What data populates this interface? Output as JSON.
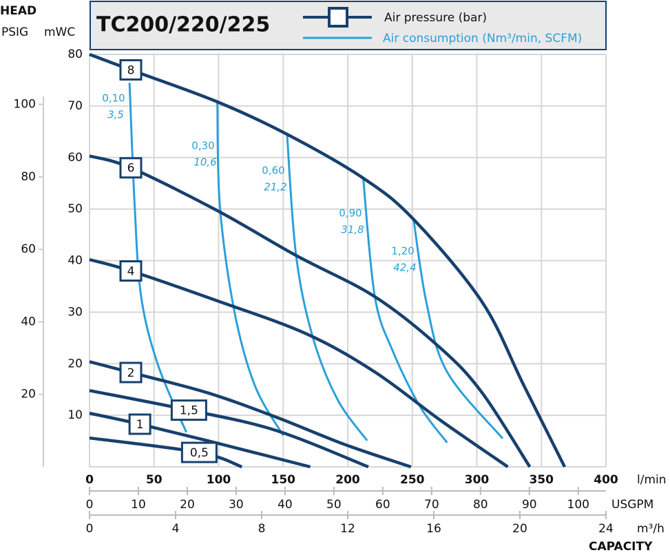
{
  "chart_data": {
    "type": "line",
    "title": "TC200/220/225",
    "y_label": "HEAD",
    "y2_label": "PSIG",
    "y_unit": "mWC",
    "x_label": "CAPACITY",
    "x_unit": "l/min",
    "x2_unit": "USGPM",
    "x3_unit": "m³/h",
    "xlim": [
      0,
      400
    ],
    "xticks": [
      0,
      50,
      100,
      150,
      200,
      250,
      300,
      350,
      400
    ],
    "x2lim": [
      0,
      105.67
    ],
    "x2ticks": [
      0,
      10,
      20,
      30,
      40,
      50,
      60,
      70,
      80,
      90,
      100
    ],
    "x3lim": [
      0,
      24
    ],
    "x3ticks": [
      0,
      4,
      8,
      12,
      16,
      20,
      24
    ],
    "ylim": [
      0,
      80
    ],
    "yticks": [
      10,
      20,
      30,
      40,
      50,
      60,
      70,
      80
    ],
    "y2lim": [
      0,
      113.8
    ],
    "y2ticks": [
      20,
      40,
      60,
      80,
      100
    ],
    "grid": true,
    "pressure_legend": "Air pressure (bar)",
    "pressure_color": "#17406d",
    "consumption_legend": "Air consumption (Nm³/min, SCFM)",
    "consumption_color": "#2aa0da",
    "series": [
      {
        "name": "8",
        "x": [
          0,
          32,
          99,
          153,
          212,
          251,
          304,
          336,
          368
        ],
        "values": [
          80,
          77,
          70.8,
          64.5,
          56,
          48,
          32,
          16,
          0
        ]
      },
      {
        "name": "6",
        "x": [
          0,
          32,
          99,
          160,
          221,
          272,
          304,
          341
        ],
        "values": [
          60.3,
          58,
          49.7,
          41,
          33,
          23,
          14.4,
          0
        ]
      },
      {
        "name": "4",
        "x": [
          0,
          32,
          99,
          168,
          221,
          272,
          324
        ],
        "values": [
          40.2,
          38,
          32.2,
          25.8,
          18.4,
          9,
          0
        ]
      },
      {
        "name": "2",
        "x": [
          0,
          32,
          91,
          144,
          197,
          249
        ],
        "values": [
          20.4,
          18.3,
          14.4,
          9.7,
          4.4,
          0
        ]
      },
      {
        "name": "1,5",
        "x": [
          0,
          77,
          144,
          216
        ],
        "values": [
          14.8,
          11,
          7.1,
          0
        ]
      },
      {
        "name": "1",
        "x": [
          0,
          37,
          91,
          171
        ],
        "values": [
          10.4,
          8.4,
          5.1,
          0
        ]
      },
      {
        "name": "0,5",
        "x": [
          0,
          85,
          118
        ],
        "values": [
          5.6,
          2.8,
          0
        ]
      }
    ],
    "consumption": [
      {
        "name": "0,10",
        "scfm": "3,5",
        "x": [
          31,
          35,
          40,
          53,
          75
        ],
        "values": [
          74.5,
          50.5,
          33,
          19.8,
          6.7
        ]
      },
      {
        "name": "0,30",
        "scfm": "10,6",
        "x": [
          99,
          101,
          112,
          128,
          150
        ],
        "values": [
          70.8,
          50.5,
          30.4,
          15.8,
          6.1
        ]
      },
      {
        "name": "0,60",
        "scfm": "21,2",
        "x": [
          153,
          160,
          173,
          192,
          215
        ],
        "values": [
          64.5,
          41,
          25.1,
          13.1,
          5.1
        ]
      },
      {
        "name": "0,90",
        "scfm": "31,8",
        "x": [
          212,
          221,
          235,
          256,
          277
        ],
        "values": [
          56,
          33,
          22.4,
          11.7,
          4.7
        ]
      },
      {
        "name": "1,20",
        "scfm": "42,4",
        "x": [
          251,
          261,
          277,
          320
        ],
        "values": [
          48,
          31.8,
          18.4,
          5.5
        ]
      }
    ]
  }
}
